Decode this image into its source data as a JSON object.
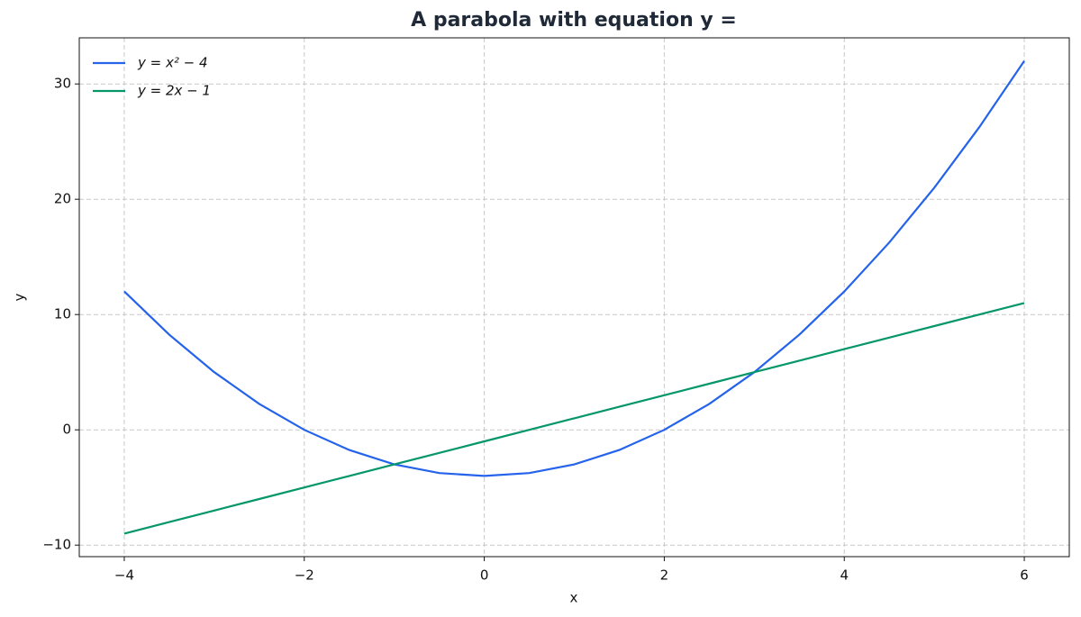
{
  "chart_data": {
    "type": "line",
    "title": "A parabola with equation y =",
    "xlabel": "x",
    "ylabel": "y",
    "x": [
      -4,
      -3.5,
      -3,
      -2.5,
      -2,
      -1.5,
      -1,
      -0.5,
      0,
      0.5,
      1,
      1.5,
      2,
      2.5,
      3,
      3.5,
      4,
      4.5,
      5,
      5.5,
      6
    ],
    "series": [
      {
        "name": "y = x² − 4",
        "color": "#2563eb",
        "values": [
          12,
          8.25,
          5,
          2.25,
          0,
          -1.75,
          -3,
          -3.75,
          -4,
          -3.75,
          -3,
          -1.75,
          0,
          2.25,
          5,
          8.25,
          12,
          16.25,
          21,
          26.25,
          32
        ]
      },
      {
        "name": "y = 2x − 1",
        "color": "#059669",
        "values": [
          -9,
          -8,
          -7,
          -6,
          -5,
          -4,
          -3,
          -2,
          -1,
          0,
          1,
          2,
          3,
          4,
          5,
          6,
          7,
          8,
          9,
          10,
          11
        ]
      }
    ],
    "xlim": [
      -4.5,
      6.5
    ],
    "ylim": [
      -11,
      34
    ],
    "xticks": [
      {
        "value": -4,
        "label": "−4"
      },
      {
        "value": -2,
        "label": "−2"
      },
      0,
      2,
      4,
      6
    ],
    "yticks": [
      {
        "value": -10,
        "label": "−10"
      },
      0,
      10,
      20,
      30
    ],
    "grid": true,
    "legend": "upper-left"
  }
}
